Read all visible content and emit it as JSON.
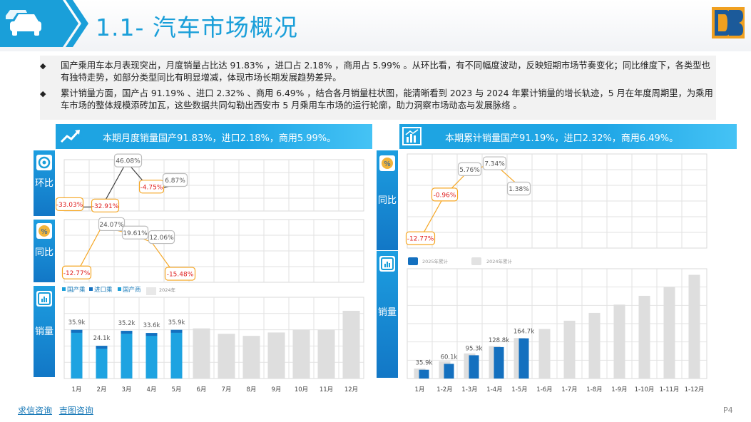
{
  "header": {
    "title": "1.1- 汽车市场概况",
    "logo_text": "DB"
  },
  "bullets": [
    "国产乘用车本月表现突出，月度销量占比达 91.83% ，进口占 2.18% ，商用占 5.99% 。从环比看，有不同幅度波动，反映短期市场节奏变化；同比维度下，各类型也有独特走势，如部分类型同比有明显增减，体现市场长期发展趋势差异。",
    "累计销量方面，国产占 91.19% 、进口 2.32% 、商用 6.49% ，结合各月销量柱状图，能清晰看到 2023 与 2024 年累计销量的增长轨迹，5 月在年度周期里，为乘用车市场的整体规模添砖加瓦，这些数据共同勾勒出西安市 5 月乘用车市场的运行轮廓，助力洞察市场动态与发展脉络 。"
  ],
  "left_banner": "本期月度销量国产91.83%，进口2.18%，商用5.99%。",
  "right_banner": "本期累计销量国产91.19%，进口2.32%，商用6.49%。",
  "side_labels": {
    "mom": "环比",
    "yoy": "同比",
    "sales": "销量"
  },
  "colors": {
    "accent": "#1a9fd9",
    "dark_blue": "#1470bf",
    "light_gray_bar": "#dcdcdc",
    "orange": "#f5a623",
    "negative": "#e02020"
  },
  "chart_data": [
    {
      "type": "line",
      "title": "",
      "categories": [
        "1月",
        "2月",
        "3月",
        "4月",
        "5月"
      ],
      "series": [
        {
          "name": "",
          "values": [
            -33.03,
            -32.91,
            46.08,
            -4.75,
            6.87
          ]
        }
      ],
      "data_labels": [
        "-33.03%",
        "-32.91%",
        "46.08%",
        "-4.75%",
        "6.87%"
      ]
    },
    {
      "type": "line",
      "title": "",
      "categories": [
        "1月",
        "2月",
        "3月",
        "4月",
        "5月"
      ],
      "series": [
        {
          "name": "",
          "values": [
            -12.77,
            24.07,
            19.61,
            12.06,
            -15.48
          ]
        }
      ],
      "data_labels": [
        "-12.77%",
        "24.07%",
        "19.61%",
        "12.06%",
        "-15.48%"
      ]
    },
    {
      "type": "bar",
      "title": "",
      "categories": [
        "1月",
        "2月",
        "3月",
        "4月",
        "5月",
        "6月",
        "7月",
        "8月",
        "9月",
        "10月",
        "11月",
        "12月"
      ],
      "legend": [
        "国产乘",
        "进口乘",
        "国产商",
        "2024年"
      ],
      "series": [
        {
          "name": "国产乘",
          "values": [
            35.9,
            24.1,
            35.2,
            33.6,
            35.9,
            null,
            null,
            null,
            null,
            null,
            null,
            null
          ]
        },
        {
          "name": "2024年",
          "values": [
            null,
            null,
            null,
            null,
            null,
            37,
            33,
            31.5,
            34,
            36,
            36,
            50
          ]
        }
      ],
      "data_labels": [
        "35.9k",
        "24.1k",
        "35.2k",
        "33.6k",
        "35.9k"
      ],
      "ylim": [
        0,
        60
      ]
    },
    {
      "type": "line",
      "title": "",
      "categories": [
        "1月",
        "1-2月",
        "1-3月",
        "1-4月",
        "1-5月"
      ],
      "series": [
        {
          "name": "",
          "values": [
            -12.77,
            -0.96,
            5.76,
            7.34,
            1.38
          ]
        }
      ],
      "data_labels": [
        "-12.77%",
        "-0.96%",
        "5.76%",
        "7.34%",
        "1.38%"
      ]
    },
    {
      "type": "bar",
      "title": "",
      "categories": [
        "1月",
        "1-2月",
        "1-3月",
        "1-4月",
        "1-5月",
        "1-6月",
        "1-7月",
        "1-8月",
        "1-9月",
        "1-10月",
        "1-11月",
        "1-12月"
      ],
      "legend": [
        "2025年累计",
        "2024年累计"
      ],
      "series": [
        {
          "name": "2025年累计",
          "values": [
            35.9,
            60.1,
            95.3,
            128.8,
            164.7,
            null,
            null,
            null,
            null,
            null,
            null,
            null
          ]
        },
        {
          "name": "2024年累计",
          "values": [
            41,
            71,
            103,
            133,
            166,
            203,
            237,
            269,
            303,
            339,
            375,
            425
          ]
        }
      ],
      "data_labels": [
        "35.9k",
        "60.1k",
        "95.3k",
        "128.8k",
        "164.7k"
      ],
      "ylim": [
        0,
        450
      ]
    }
  ],
  "footer": {
    "links": [
      "求信咨询",
      "吉图咨询"
    ],
    "page": "P4"
  }
}
